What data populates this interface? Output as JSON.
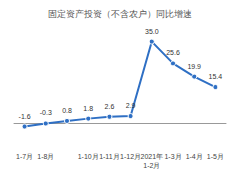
{
  "chart_data": {
    "type": "line",
    "title": "固定资产投资（不含农户）同比增速",
    "categories": [
      "1-7月",
      "1-8月",
      null,
      "1-10月",
      "1-11月",
      "1-12月",
      "2021年\n1-2月",
      "1-3月",
      "1-4月",
      "1-5月"
    ],
    "values": [
      -1.6,
      -0.3,
      0.8,
      1.8,
      2.6,
      2.9,
      35.0,
      25.6,
      19.9,
      15.4
    ],
    "value_labels": [
      "-1.6",
      "-0.3",
      "0.8",
      "1.8",
      "2.6",
      "2.9",
      "35.0",
      "25.6",
      "19.9",
      "15.4"
    ],
    "color": "#2e6fc4",
    "marker": "circle",
    "data_labels": true,
    "ylim": [
      -10,
      40
    ],
    "grid": false,
    "tick_labels": "x"
  }
}
